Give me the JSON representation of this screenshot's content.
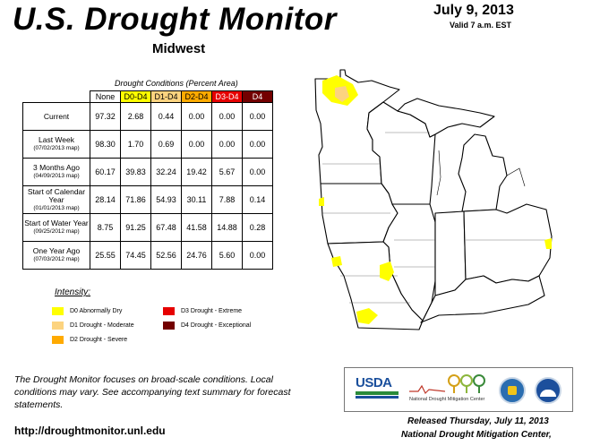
{
  "header": {
    "title": "U.S. Drought Monitor",
    "region": "Midwest",
    "date": "July 9, 2013",
    "valid": "Valid 7 a.m. EST"
  },
  "table": {
    "caption": "Drought Conditions (Percent Area)",
    "columns": [
      "None",
      "D0-D4",
      "D1-D4",
      "D2-D4",
      "D3-D4",
      "D4"
    ],
    "rows": [
      {
        "label": "Current",
        "sub": "",
        "values": [
          "97.32",
          "2.68",
          "0.44",
          "0.00",
          "0.00",
          "0.00"
        ]
      },
      {
        "label": "Last Week",
        "sub": "(07/02/2013 map)",
        "values": [
          "98.30",
          "1.70",
          "0.69",
          "0.00",
          "0.00",
          "0.00"
        ]
      },
      {
        "label": "3 Months Ago",
        "sub": "(04/09/2013 map)",
        "values": [
          "60.17",
          "39.83",
          "32.24",
          "19.42",
          "5.67",
          "0.00"
        ]
      },
      {
        "label": "Start of Calendar Year",
        "sub": "(01/01/2013 map)",
        "values": [
          "28.14",
          "71.86",
          "54.93",
          "30.11",
          "7.88",
          "0.14"
        ]
      },
      {
        "label": "Start of Water Year",
        "sub": "(09/25/2012 map)",
        "values": [
          "8.75",
          "91.25",
          "67.48",
          "41.58",
          "14.88",
          "0.28"
        ]
      },
      {
        "label": "One Year Ago",
        "sub": "(07/03/2012 map)",
        "values": [
          "25.55",
          "74.45",
          "52.56",
          "24.76",
          "5.60",
          "0.00"
        ]
      }
    ]
  },
  "legend": {
    "title": "Intensity:",
    "items": [
      {
        "label": "D0 Abnormally Dry",
        "color": "#ffff00"
      },
      {
        "label": "D1 Drought - Moderate",
        "color": "#fcd37f"
      },
      {
        "label": "D2 Drought - Severe",
        "color": "#ffaa00"
      },
      {
        "label": "D3 Drought - Extreme",
        "color": "#e60000"
      },
      {
        "label": "D4 Drought - Exceptional",
        "color": "#730000"
      }
    ]
  },
  "note": "The Drought Monitor focuses on broad-scale conditions. Local conditions may vary. See accompanying text summary for forecast statements.",
  "url": "http://droughtmonitor.unl.edu",
  "footer": {
    "released": "Released Thursday, July 11, 2013",
    "author": "National Drought Mitigation Center,"
  },
  "logos": {
    "usda": "USDA",
    "ndmc": "National Drought Mitigation Center"
  }
}
